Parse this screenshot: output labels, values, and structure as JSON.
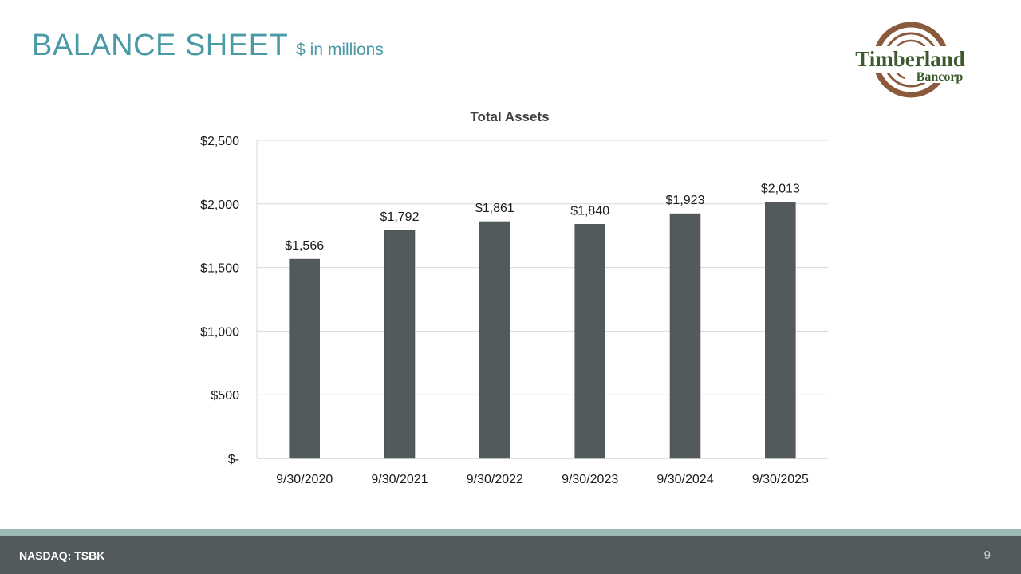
{
  "header": {
    "title": "BALANCE SHEET",
    "subtitle": "$ in millions"
  },
  "logo": {
    "line1": "Timberland",
    "line2": "Bancorp",
    "ring_color": "#8b5a3c",
    "text_color": "#3d5a2e"
  },
  "chart_data": {
    "type": "bar",
    "title": "Total Assets",
    "categories": [
      "9/30/2020",
      "9/30/2021",
      "9/30/2022",
      "9/30/2023",
      "9/30/2024",
      "9/30/2025"
    ],
    "values": [
      1566,
      1792,
      1861,
      1840,
      1923,
      2013
    ],
    "data_labels": [
      "$1,566",
      "$1,792",
      "$1,861",
      "$1,840",
      "$1,923",
      "$2,013"
    ],
    "y_ticks": [
      0,
      500,
      1000,
      1500,
      2000,
      2500
    ],
    "y_tick_labels": [
      "$-",
      "$500",
      "$1,000",
      "$1,500",
      "$2,000",
      "$2,500"
    ],
    "ylim": [
      0,
      2500
    ],
    "xlabel": "",
    "ylabel": "",
    "grid": true,
    "bar_color": "#525a5c"
  },
  "footer": {
    "ticker": "NASDAQ: TSBK",
    "page_number": "9"
  }
}
